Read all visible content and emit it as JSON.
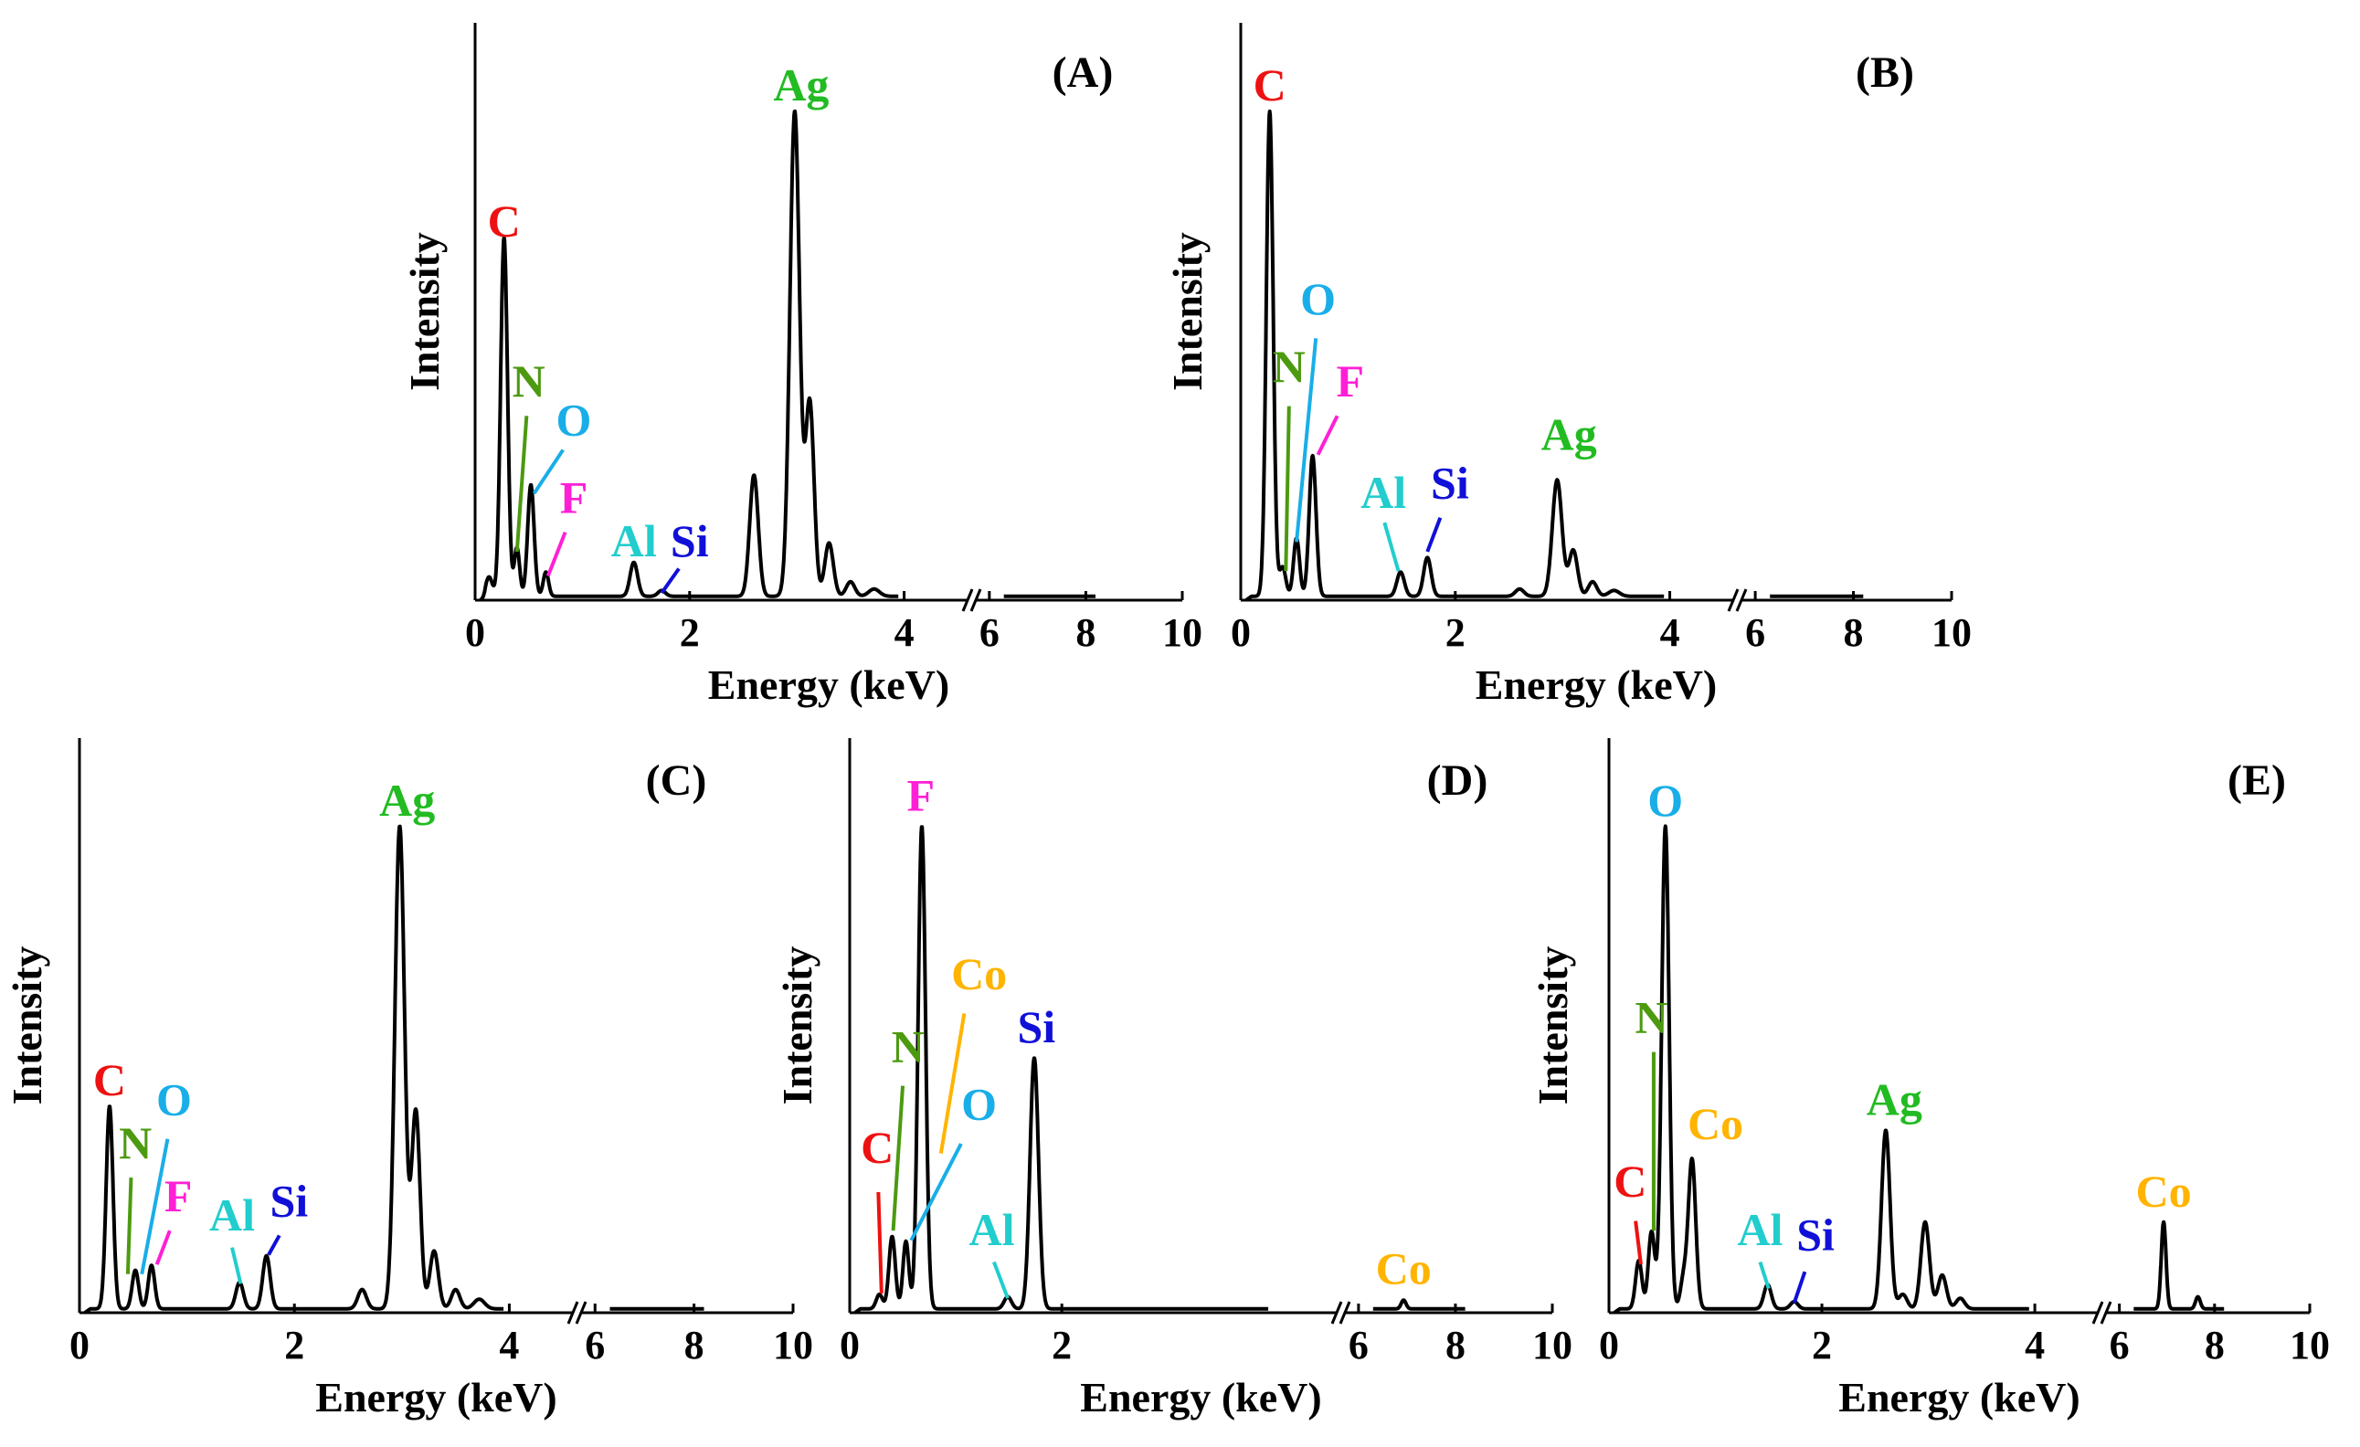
{
  "colors": {
    "C": "#ee1111",
    "N": "#4c9a10",
    "O": "#19aee8",
    "F": "#ff1fd6",
    "Al": "#22cdcd",
    "Si": "#1010d8",
    "Ag": "#22bb22",
    "Co": "#ffb400"
  },
  "chart_data": [
    {
      "type": "line",
      "panel": "(A)",
      "xlabel": "Energy (keV)",
      "ylabel": "Intensity",
      "xlim_segment1": [
        0,
        4.6
      ],
      "xlim_segment2": [
        5.7,
        10
      ],
      "ylim": [
        0,
        100
      ],
      "x_ticks_segment1": [
        0,
        2,
        4
      ],
      "x_ticks_segment2": [
        6,
        8,
        10
      ],
      "baseline": 0.8,
      "peaks": [
        {
          "x": 0.13,
          "h": 4,
          "w": 0.03
        },
        {
          "x": 0.27,
          "h": 74,
          "w": 0.032
        },
        {
          "x": 0.39,
          "h": 10,
          "w": 0.025
        },
        {
          "x": 0.52,
          "h": 23,
          "w": 0.03
        },
        {
          "x": 0.66,
          "h": 5,
          "w": 0.025
        },
        {
          "x": 1.48,
          "h": 7,
          "w": 0.035
        },
        {
          "x": 1.74,
          "h": 1.2,
          "w": 0.035
        },
        {
          "x": 2.6,
          "h": 25,
          "w": 0.04
        },
        {
          "x": 2.98,
          "h": 100,
          "w": 0.045
        },
        {
          "x": 3.12,
          "h": 40,
          "w": 0.04
        },
        {
          "x": 3.3,
          "h": 11,
          "w": 0.04
        },
        {
          "x": 3.5,
          "h": 3,
          "w": 0.04
        },
        {
          "x": 3.72,
          "h": 1.5,
          "w": 0.05
        }
      ],
      "annotations": [
        {
          "el": "C",
          "text": "C",
          "lx": 0.27,
          "ly": 75,
          "line": null
        },
        {
          "el": "N",
          "text": "N",
          "lx": 0.5,
          "ly": 42,
          "line": [
            0.48,
            38,
            0.39,
            10
          ]
        },
        {
          "el": "O",
          "text": "O",
          "lx": 0.92,
          "ly": 34,
          "line": [
            0.82,
            31,
            0.55,
            22
          ]
        },
        {
          "el": "F",
          "text": "F",
          "lx": 0.92,
          "ly": 18,
          "line": [
            0.84,
            14,
            0.68,
            5
          ]
        },
        {
          "el": "Al",
          "text": "Al",
          "lx": 1.48,
          "ly": 9,
          "line": null
        },
        {
          "el": "Si",
          "text": "Si",
          "lx": 2.0,
          "ly": 9,
          "line": [
            1.9,
            6.5,
            1.74,
            1.5
          ]
        },
        {
          "el": "Ag",
          "text": "Ag",
          "lx": 3.04,
          "ly": 103,
          "line": null
        }
      ]
    },
    {
      "type": "line",
      "panel": "(B)",
      "xlabel": "Energy (keV)",
      "ylabel": "Intensity",
      "xlim_segment1": [
        0,
        4.6
      ],
      "xlim_segment2": [
        5.7,
        10
      ],
      "ylim": [
        0,
        100
      ],
      "x_ticks_segment1": [
        0,
        2,
        4
      ],
      "x_ticks_segment2": [
        6,
        8,
        10
      ],
      "baseline": 0.8,
      "peaks": [
        {
          "x": 0.27,
          "h": 100,
          "w": 0.032
        },
        {
          "x": 0.39,
          "h": 6,
          "w": 0.03
        },
        {
          "x": 0.52,
          "h": 12,
          "w": 0.028
        },
        {
          "x": 0.67,
          "h": 29,
          "w": 0.032
        },
        {
          "x": 1.49,
          "h": 5,
          "w": 0.035
        },
        {
          "x": 1.74,
          "h": 8,
          "w": 0.035
        },
        {
          "x": 2.6,
          "h": 1.5,
          "w": 0.04
        },
        {
          "x": 2.95,
          "h": 24,
          "w": 0.045
        },
        {
          "x": 3.1,
          "h": 9.5,
          "w": 0.04
        },
        {
          "x": 3.28,
          "h": 3,
          "w": 0.04
        },
        {
          "x": 3.48,
          "h": 1.2,
          "w": 0.05
        }
      ],
      "annotations": [
        {
          "el": "C",
          "text": "C",
          "lx": 0.27,
          "ly": 103,
          "line": null
        },
        {
          "el": "N",
          "text": "N",
          "lx": 0.45,
          "ly": 45,
          "line": [
            0.45,
            40,
            0.42,
            6
          ]
        },
        {
          "el": "O",
          "text": "O",
          "lx": 0.72,
          "ly": 59,
          "line": [
            0.7,
            54,
            0.52,
            12
          ]
        },
        {
          "el": "F",
          "text": "F",
          "lx": 1.02,
          "ly": 42,
          "line": [
            0.9,
            38,
            0.72,
            30
          ]
        },
        {
          "el": "Al",
          "text": "Al",
          "lx": 1.33,
          "ly": 19,
          "line": [
            1.34,
            16,
            1.47,
            6
          ]
        },
        {
          "el": "Si",
          "text": "Si",
          "lx": 1.95,
          "ly": 21,
          "line": [
            1.86,
            17,
            1.74,
            10
          ]
        },
        {
          "el": "Ag",
          "text": "Ag",
          "lx": 3.06,
          "ly": 31,
          "line": null
        }
      ]
    },
    {
      "type": "line",
      "panel": "(C)",
      "xlabel": "Energy (keV)",
      "ylabel": "Intensity",
      "xlim_segment1": [
        0,
        4.6
      ],
      "xlim_segment2": [
        5.7,
        10
      ],
      "ylim": [
        0,
        100
      ],
      "x_ticks_segment1": [
        0,
        2,
        4
      ],
      "x_ticks_segment2": [
        6,
        8,
        10
      ],
      "baseline": 0.8,
      "peaks": [
        {
          "x": 0.28,
          "h": 42,
          "w": 0.032
        },
        {
          "x": 0.52,
          "h": 8,
          "w": 0.03
        },
        {
          "x": 0.67,
          "h": 9,
          "w": 0.03
        },
        {
          "x": 1.49,
          "h": 5.5,
          "w": 0.035
        },
        {
          "x": 1.74,
          "h": 11,
          "w": 0.035
        },
        {
          "x": 2.63,
          "h": 4,
          "w": 0.04
        },
        {
          "x": 2.98,
          "h": 100,
          "w": 0.045
        },
        {
          "x": 3.13,
          "h": 41,
          "w": 0.04
        },
        {
          "x": 3.3,
          "h": 12,
          "w": 0.04
        },
        {
          "x": 3.5,
          "h": 4,
          "w": 0.04
        },
        {
          "x": 3.72,
          "h": 2,
          "w": 0.05
        }
      ],
      "annotations": [
        {
          "el": "C",
          "text": "C",
          "lx": 0.28,
          "ly": 45,
          "line": null
        },
        {
          "el": "N",
          "text": "N",
          "lx": 0.52,
          "ly": 32,
          "line": [
            0.48,
            28,
            0.45,
            8
          ]
        },
        {
          "el": "O",
          "text": "O",
          "lx": 0.88,
          "ly": 41,
          "line": [
            0.82,
            36,
            0.58,
            8
          ]
        },
        {
          "el": "F",
          "text": "F",
          "lx": 0.92,
          "ly": 21,
          "line": [
            0.84,
            17,
            0.72,
            10
          ]
        },
        {
          "el": "Al",
          "text": "Al",
          "lx": 1.42,
          "ly": 17,
          "line": [
            1.42,
            13.5,
            1.5,
            6
          ]
        },
        {
          "el": "Si",
          "text": "Si",
          "lx": 1.95,
          "ly": 20,
          "line": [
            1.86,
            16,
            1.76,
            12
          ]
        },
        {
          "el": "Ag",
          "text": "Ag",
          "lx": 3.05,
          "ly": 103,
          "line": null
        }
      ]
    },
    {
      "type": "line",
      "panel": "(D)",
      "xlabel": "Energy (keV)",
      "ylabel": "Intensity",
      "xlim_segment1": [
        0,
        4.6
      ],
      "xlim_segment2": [
        5.7,
        10
      ],
      "ylim": [
        0,
        100
      ],
      "x_ticks_segment1": [
        0,
        2
      ],
      "x_ticks_segment2": [
        6,
        8,
        10
      ],
      "baseline": 0.8,
      "peaks": [
        {
          "x": 0.28,
          "h": 3,
          "w": 0.03
        },
        {
          "x": 0.4,
          "h": 15,
          "w": 0.03
        },
        {
          "x": 0.53,
          "h": 14,
          "w": 0.028
        },
        {
          "x": 0.68,
          "h": 100,
          "w": 0.035
        },
        {
          "x": 1.49,
          "h": 2.5,
          "w": 0.035
        },
        {
          "x": 1.74,
          "h": 52,
          "w": 0.04
        },
        {
          "x": 6.93,
          "h": 1.8,
          "w": 0.05
        }
      ],
      "annotations": [
        {
          "el": "C",
          "text": "C",
          "lx": 0.26,
          "ly": 31,
          "line": [
            0.27,
            25,
            0.3,
            4
          ]
        },
        {
          "el": "N",
          "text": "N",
          "lx": 0.55,
          "ly": 52,
          "line": [
            0.5,
            47,
            0.41,
            17
          ]
        },
        {
          "el": "Co",
          "text": "Co",
          "lx": 1.22,
          "ly": 67,
          "line": [
            1.08,
            62,
            0.86,
            33
          ]
        },
        {
          "el": "O",
          "text": "O",
          "lx": 1.22,
          "ly": 40,
          "line": [
            1.05,
            35,
            0.58,
            15
          ]
        },
        {
          "el": "F",
          "text": "F",
          "lx": 0.67,
          "ly": 104,
          "line": null
        },
        {
          "el": "Al",
          "text": "Al",
          "lx": 1.34,
          "ly": 14,
          "line": [
            1.36,
            10.5,
            1.49,
            3
          ]
        },
        {
          "el": "Si",
          "text": "Si",
          "lx": 1.76,
          "ly": 56,
          "line": null
        },
        {
          "el": "Co",
          "text": "Co",
          "lx": 6.93,
          "ly": 6,
          "line": null
        }
      ]
    },
    {
      "type": "line",
      "panel": "(E)",
      "xlabel": "Energy (keV)",
      "ylabel": "Intensity",
      "xlim_segment1": [
        0,
        4.6
      ],
      "xlim_segment2": [
        5.7,
        10
      ],
      "ylim": [
        0,
        100
      ],
      "x_ticks_segment1": [
        0,
        2,
        4
      ],
      "x_ticks_segment2": [
        6,
        8,
        10
      ],
      "baseline": 0.8,
      "peaks": [
        {
          "x": 0.28,
          "h": 10,
          "w": 0.03
        },
        {
          "x": 0.4,
          "h": 16,
          "w": 0.03
        },
        {
          "x": 0.53,
          "h": 100,
          "w": 0.035
        },
        {
          "x": 0.7,
          "h": 6,
          "w": 0.03
        },
        {
          "x": 0.78,
          "h": 31,
          "w": 0.035
        },
        {
          "x": 1.49,
          "h": 5,
          "w": 0.035
        },
        {
          "x": 1.74,
          "h": 1.5,
          "w": 0.035
        },
        {
          "x": 2.6,
          "h": 37,
          "w": 0.04
        },
        {
          "x": 2.76,
          "h": 3,
          "w": 0.04
        },
        {
          "x": 2.97,
          "h": 18,
          "w": 0.04
        },
        {
          "x": 3.13,
          "h": 7,
          "w": 0.04
        },
        {
          "x": 3.3,
          "h": 2.2,
          "w": 0.04
        },
        {
          "x": 6.93,
          "h": 18,
          "w": 0.05
        },
        {
          "x": 7.65,
          "h": 2.5,
          "w": 0.05
        }
      ],
      "annotations": [
        {
          "el": "C",
          "text": "C",
          "lx": 0.2,
          "ly": 24,
          "line": [
            0.25,
            19,
            0.3,
            10
          ]
        },
        {
          "el": "N",
          "text": "N",
          "lx": 0.4,
          "ly": 58,
          "line": [
            0.42,
            54,
            0.42,
            17
          ]
        },
        {
          "el": "O",
          "text": "O",
          "lx": 0.53,
          "ly": 103,
          "line": null
        },
        {
          "el": "Co",
          "text": "Co",
          "lx": 1.0,
          "ly": 36,
          "line": null
        },
        {
          "el": "Al",
          "text": "Al",
          "lx": 1.42,
          "ly": 14,
          "line": [
            1.42,
            10.5,
            1.5,
            5
          ]
        },
        {
          "el": "Si",
          "text": "Si",
          "lx": 1.94,
          "ly": 13,
          "line": [
            1.84,
            8.5,
            1.74,
            2
          ]
        },
        {
          "el": "Ag",
          "text": "Ag",
          "lx": 2.68,
          "ly": 41,
          "line": null
        },
        {
          "el": "Co",
          "text": "Co",
          "lx": 6.93,
          "ly": 22,
          "line": null
        }
      ]
    }
  ]
}
